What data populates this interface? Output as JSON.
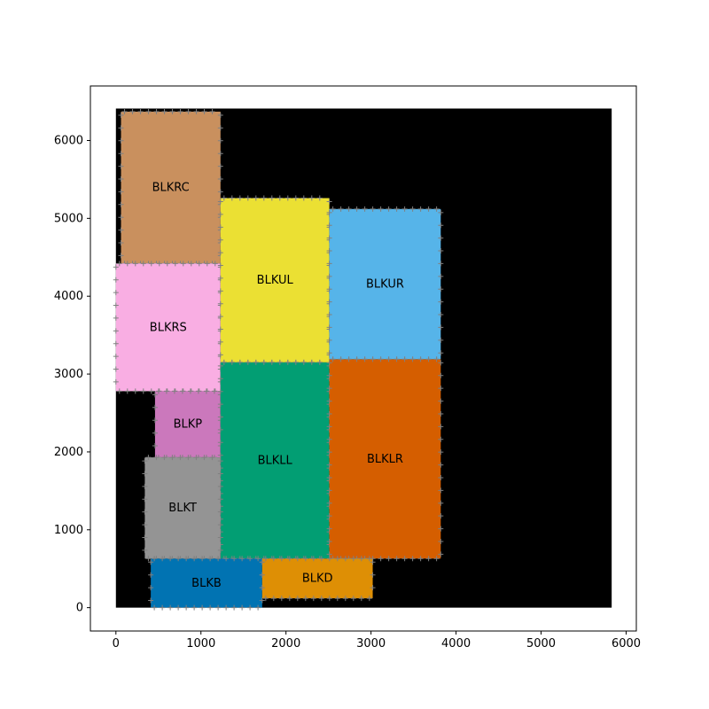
{
  "chart_data": {
    "type": "block-diagram",
    "title": "",
    "xlabel": "",
    "ylabel": "",
    "xlim": [
      -300,
      6120
    ],
    "ylim": [
      -300,
      6700
    ],
    "xticks": [
      0,
      1000,
      2000,
      3000,
      4000,
      5000,
      6000
    ],
    "yticks": [
      0,
      1000,
      2000,
      3000,
      4000,
      5000,
      6000
    ],
    "grid": false,
    "background": {
      "x0": 0,
      "y0": 0,
      "x1": 5830,
      "y1": 6410,
      "color": "#000000"
    },
    "marker_color": "#808080",
    "blocks": [
      {
        "name": "BLKRC",
        "x0": 60,
        "y0": 4420,
        "x1": 1230,
        "y1": 6370,
        "color": "#C9905E"
      },
      {
        "name": "BLKRS",
        "x0": 0,
        "y0": 2780,
        "x1": 1230,
        "y1": 4420,
        "color": "#F9AEE3"
      },
      {
        "name": "BLKUL",
        "x0": 1230,
        "y0": 3150,
        "x1": 2510,
        "y1": 5260,
        "color": "#EBE033"
      },
      {
        "name": "BLKUR",
        "x0": 2510,
        "y0": 3190,
        "x1": 3820,
        "y1": 5120,
        "color": "#56B4E9"
      },
      {
        "name": "BLKP",
        "x0": 460,
        "y0": 1930,
        "x1": 1230,
        "y1": 2780,
        "color": "#CB78BC"
      },
      {
        "name": "BLKLL",
        "x0": 1230,
        "y0": 630,
        "x1": 2510,
        "y1": 3150,
        "color": "#029E73"
      },
      {
        "name": "BLKLR",
        "x0": 2510,
        "y0": 630,
        "x1": 3820,
        "y1": 3190,
        "color": "#D55E00"
      },
      {
        "name": "BLKT",
        "x0": 340,
        "y0": 630,
        "x1": 1230,
        "y1": 1930,
        "color": "#949494"
      },
      {
        "name": "BLKB",
        "x0": 410,
        "y0": 0,
        "x1": 1720,
        "y1": 630,
        "color": "#0173B2"
      },
      {
        "name": "BLKD",
        "x0": 1720,
        "y0": 120,
        "x1": 3020,
        "y1": 630,
        "color": "#DE8F05"
      }
    ]
  }
}
